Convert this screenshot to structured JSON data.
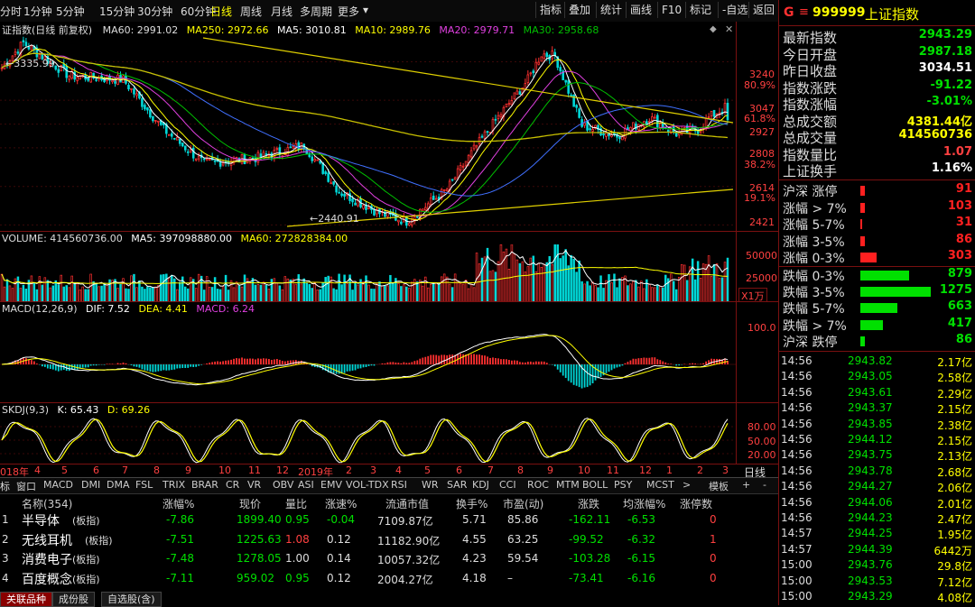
{
  "toolbar": {
    "periods": [
      "分时",
      "1分钟",
      "5分钟",
      "15分钟",
      "30分钟",
      "60分钟",
      "日线",
      "周线",
      "月线",
      "多周期",
      "更多"
    ],
    "active_period": "日线",
    "buttons": [
      "指标",
      "叠加",
      "统计",
      "画线",
      "F10",
      "标记",
      "-自选",
      "返回"
    ]
  },
  "main_legend": {
    "title": "证指数(日线 前复权)",
    "ma60": "MA60: 2991.02",
    "ma250": "MA250: 2972.66",
    "ma5": "MA5: 3010.81",
    "ma10": "MA10: 2989.76",
    "ma20": "MA20: 2979.71",
    "ma30": "MA30: 2958.68"
  },
  "main_chart": {
    "high_label": "3335.99",
    "low_label": "2440.91",
    "price_axis": [
      "3240",
      "3047",
      "2927",
      "2808",
      "2614",
      "2421"
    ],
    "pct_axis": [
      "80.9%",
      "61.8%",
      "38.2%",
      "19.1%"
    ]
  },
  "volume_legend": {
    "label": "VOLUME: 414560736.00",
    "ma5": "MA5: 397098880.00",
    "ma60": "MA60: 272828384.00",
    "axis": [
      "50000",
      "25000"
    ],
    "unit": "X1万"
  },
  "macd_legend": {
    "label": "MACD(12,26,9)",
    "dif": "DIF: 7.52",
    "dea": "DEA: 4.41",
    "macd": "MACD: 6.24",
    "axis": [
      "100.0"
    ]
  },
  "kdj_legend": {
    "label": "SKDJ(9,3)",
    "k": "K: 65.43",
    "d": "D: 69.26",
    "axis": [
      "80.00",
      "50.00",
      "20.00"
    ]
  },
  "time_axis": {
    "labels": [
      "018年",
      "4",
      "5",
      "6",
      "7",
      "8",
      "9",
      "10",
      "11",
      "12",
      "2019年",
      "2",
      "3",
      "4",
      "5",
      "6",
      "7",
      "8",
      "9",
      "10",
      "11",
      "12",
      "1",
      "2",
      "3"
    ],
    "tab": "日线"
  },
  "indicator_tabs": [
    "标",
    "窗口",
    "MACD",
    "DMI",
    "DMA",
    "FSL",
    "TRIX",
    "BRAR",
    "CR",
    "VR",
    "OBV",
    "ASI",
    "EMV",
    "VOL-TDX",
    "RSI",
    "WR",
    "SAR",
    "KDJ",
    "CCI",
    "ROC",
    "MTM",
    "BOLL",
    "PSY",
    "MCST",
    ">",
    "模板",
    "+",
    "-"
  ],
  "table": {
    "headers": [
      "名称(354)",
      "涨幅%",
      "现价",
      "量比",
      "涨速%",
      "流通市值",
      "换手%",
      "市盈(动)",
      "涨跌",
      "均涨幅%",
      "涨停数"
    ],
    "rows": [
      {
        "idx": "1",
        "name": "半导体",
        "tag": "(板指)",
        "chg": "-7.86",
        "price": "1899.40",
        "vr": "0.95",
        "speed": "-0.04",
        "cap": "7109.87亿",
        "turn": "5.71",
        "pe": "85.86",
        "diff": "-162.11",
        "avg": "-6.53",
        "limit": "0"
      },
      {
        "idx": "2",
        "name": "无线耳机",
        "tag": "(板指)",
        "chg": "-7.51",
        "price": "1225.63",
        "vr": "1.08",
        "speed": "0.12",
        "cap": "11182.90亿",
        "turn": "4.55",
        "pe": "63.25",
        "diff": "-99.52",
        "avg": "-6.32",
        "limit": "1"
      },
      {
        "idx": "3",
        "name": "消费电子",
        "tag": "(板指)",
        "chg": "-7.48",
        "price": "1278.05",
        "vr": "1.00",
        "speed": "0.14",
        "cap": "10057.32亿",
        "turn": "4.23",
        "pe": "59.54",
        "diff": "-103.28",
        "avg": "-6.15",
        "limit": "0"
      },
      {
        "idx": "4",
        "name": "百度概念",
        "tag": "(板指)",
        "chg": "-7.11",
        "price": "959.02",
        "vr": "0.95",
        "speed": "0.12",
        "cap": "2004.27亿",
        "turn": "4.18",
        "pe": "–",
        "diff": "-73.41",
        "avg": "-6.16",
        "limit": "0"
      }
    ]
  },
  "bottom_tabs": [
    "关联品种",
    "成份股",
    "自选股(含)"
  ],
  "right_panel": {
    "code": "999999",
    "name": "上证指数",
    "marker": "G",
    "stats": [
      {
        "label": "最新指数",
        "value": "2943.29",
        "color": "#00e000"
      },
      {
        "label": "今日开盘",
        "value": "2987.18",
        "color": "#00e000"
      },
      {
        "label": "昨日收盘",
        "value": "3034.51",
        "color": "#ffffff"
      },
      {
        "label": "指数涨跌",
        "value": "-91.22",
        "color": "#00e000"
      },
      {
        "label": "指数涨幅",
        "value": "-3.01%",
        "color": "#00e000"
      },
      {
        "label": "总成交额",
        "value": "4381.44亿",
        "color": "#ffff00"
      },
      {
        "label": "总成交量",
        "value": "414560736",
        "color": "#ffff00"
      },
      {
        "label": "指数量比",
        "value": "1.07",
        "color": "#ff4040"
      },
      {
        "label": "上证换手",
        "value": "1.16%",
        "color": "#ffffff"
      }
    ],
    "breadth": [
      {
        "label": "沪深 涨停",
        "value": "91",
        "fill": 0.02,
        "color": "#ff2020"
      },
      {
        "label": "涨幅 > 7%",
        "value": "103",
        "fill": 0.02,
        "color": "#ff2020"
      },
      {
        "label": "涨幅 5-7%",
        "value": "31",
        "fill": 0.005,
        "color": "#ff2020"
      },
      {
        "label": "涨幅 3-5%",
        "value": "86",
        "fill": 0.02,
        "color": "#ff2020"
      },
      {
        "label": "涨幅 0-3%",
        "value": "303",
        "fill": 0.075,
        "color": "#ff2020"
      },
      {
        "label": "跌幅 0-3%",
        "value": "879",
        "fill": 0.225,
        "color": "#00e000"
      },
      {
        "label": "跌幅 3-5%",
        "value": "1275",
        "fill": 0.325,
        "color": "#00e000"
      },
      {
        "label": "跌幅 5-7%",
        "value": "663",
        "fill": 0.17,
        "color": "#00e000"
      },
      {
        "label": "跌幅 > 7%",
        "value": "417",
        "fill": 0.105,
        "color": "#00e000"
      },
      {
        "label": "沪深 跌停",
        "value": "86",
        "fill": 0.02,
        "color": "#00e000"
      }
    ],
    "ticks": [
      {
        "time": "14:56",
        "price": "2943.82",
        "vol": "2.17亿"
      },
      {
        "time": "14:56",
        "price": "2943.05",
        "vol": "2.58亿"
      },
      {
        "time": "14:56",
        "price": "2943.61",
        "vol": "2.29亿"
      },
      {
        "time": "14:56",
        "price": "2943.37",
        "vol": "2.15亿"
      },
      {
        "time": "14:56",
        "price": "2943.85",
        "vol": "2.38亿"
      },
      {
        "time": "14:56",
        "price": "2944.12",
        "vol": "2.15亿"
      },
      {
        "time": "14:56",
        "price": "2943.75",
        "vol": "2.13亿"
      },
      {
        "time": "14:56",
        "price": "2943.78",
        "vol": "2.68亿"
      },
      {
        "time": "14:56",
        "price": "2944.27",
        "vol": "2.06亿"
      },
      {
        "time": "14:56",
        "price": "2944.06",
        "vol": "2.01亿"
      },
      {
        "time": "14:56",
        "price": "2944.23",
        "vol": "2.47亿"
      },
      {
        "time": "14:57",
        "price": "2944.25",
        "vol": "1.95亿"
      },
      {
        "time": "14:57",
        "price": "2944.39",
        "vol": "6442万"
      },
      {
        "time": "15:00",
        "price": "2943.76",
        "vol": "29.8亿"
      },
      {
        "time": "15:00",
        "price": "2943.53",
        "vol": "7.12亿"
      },
      {
        "time": "15:00",
        "price": "2943.29",
        "vol": "4.08亿"
      }
    ]
  }
}
